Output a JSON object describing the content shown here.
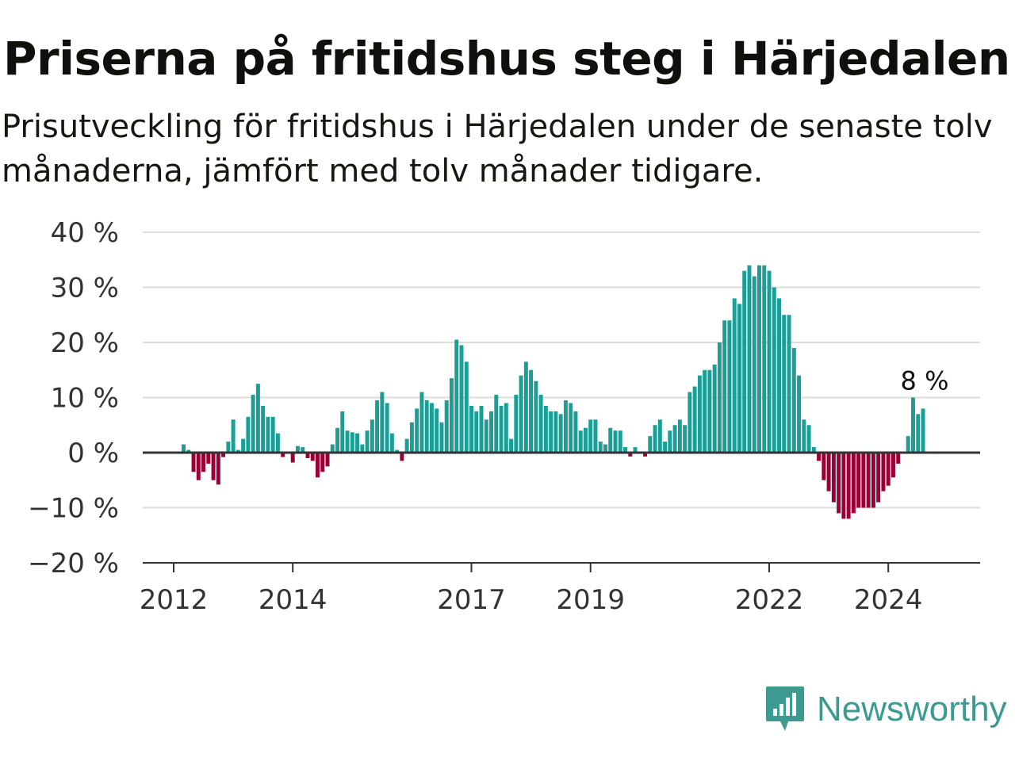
{
  "title": "Priserna på fritidshus steg i Härjedalen",
  "subtitle": "Prisutveckling för fritidshus i Härjedalen under de senaste tolv månaderna, jämfört med tolv månader tidigare.",
  "brand": "Newsworthy",
  "colors": {
    "positive": "#1a9e96",
    "negative": "#9a0036",
    "grid": "#dddddd",
    "axis": "#333333",
    "brand": "#3d9a91"
  },
  "chart_data": {
    "type": "bar",
    "ylabel": "",
    "xlabel": "",
    "y_unit": " %",
    "ylim": [
      -20,
      40
    ],
    "y_ticks": [
      40,
      30,
      20,
      10,
      0,
      -10,
      -20
    ],
    "y_tick_labels": [
      "40 %",
      "30 %",
      "20 %",
      "10 %",
      "0 %",
      "−10 %",
      "−20 %"
    ],
    "x_tick_labels": [
      "2012",
      "2014",
      "2017",
      "2019",
      "2022",
      "2024"
    ],
    "start": "2012-03",
    "frequency": "monthly",
    "values": [
      1.5,
      0.5,
      -3.5,
      -5,
      -3.5,
      -2,
      -5,
      -5.8,
      -0.8,
      2,
      6,
      0.5,
      2.5,
      6.5,
      10.5,
      12.5,
      8.5,
      6.5,
      6.5,
      3.5,
      -0.8,
      0,
      -1.8,
      1.2,
      1,
      -1,
      -1.5,
      -4.5,
      -3.5,
      -2.5,
      1.5,
      4.5,
      7.5,
      4,
      3.7,
      3.5,
      1.5,
      4,
      6,
      9.5,
      11,
      9,
      3.5,
      0.5,
      -1.5,
      2.5,
      5.5,
      8,
      11,
      9.5,
      9,
      8,
      5.5,
      9.5,
      13.5,
      20.5,
      19.5,
      16.5,
      8.5,
      7.5,
      8.5,
      6,
      7.5,
      10.5,
      8.5,
      9,
      2.5,
      10.5,
      14,
      16.5,
      15,
      13,
      10.5,
      8.5,
      7.5,
      7.5,
      7,
      9.5,
      9,
      7.5,
      4,
      4.5,
      6,
      6,
      2,
      1.5,
      4.5,
      4,
      4,
      1,
      -0.7,
      1,
      0,
      -0.7,
      3,
      5,
      6,
      2,
      4,
      5,
      6,
      5,
      11,
      12,
      14,
      15,
      15,
      16,
      20,
      24,
      24,
      28,
      27,
      33,
      34,
      32,
      34,
      34,
      33,
      30,
      28,
      25,
      25,
      19,
      14,
      6,
      5,
      1,
      -1.5,
      -5,
      -7,
      -9,
      -11,
      -12,
      -12,
      -11,
      -10,
      -10,
      -10,
      -10,
      -9,
      -7,
      -6,
      -4.5,
      -2,
      0,
      3,
      10,
      7,
      8
    ],
    "label": "8 %"
  }
}
